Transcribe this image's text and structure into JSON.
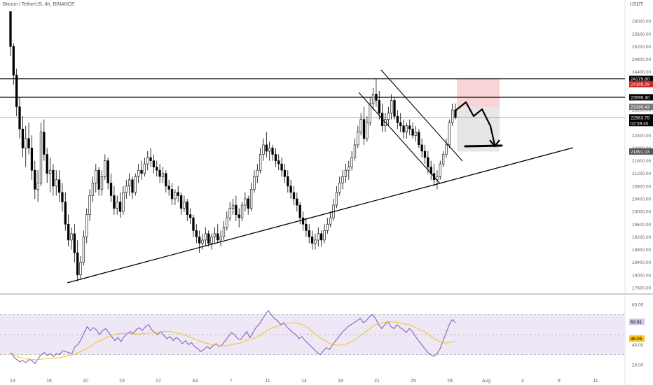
{
  "header": {
    "symbol": "Bitcoin / TetherUS, 4h, BINANCE",
    "unit": "USDT"
  },
  "chart_data": {
    "type": "candlestick",
    "ylim": [
      17400,
      26400
    ],
    "y_ticks": [
      17600,
      18000,
      18400,
      18800,
      19200,
      19600,
      20000,
      20400,
      20800,
      21200,
      21600,
      22000,
      22400,
      22800,
      23200,
      23600,
      24000,
      24400,
      24800,
      25200,
      25600,
      26000
    ],
    "x_tick_labels": [
      "13",
      "16",
      "20",
      "23",
      "27",
      "Jul",
      "7",
      "11",
      "14",
      "18",
      "21",
      "25",
      "28",
      "Aug",
      "4",
      "8",
      "11"
    ],
    "price_labels": [
      {
        "text": "24179.80",
        "role": "resistance"
      },
      {
        "text": "24169.29",
        "role": "stop"
      },
      {
        "text": "23599.30",
        "role": "resistance"
      },
      {
        "text": "23296.43",
        "role": "entry"
      },
      {
        "text": "22963.75",
        "role": "last"
      },
      {
        "text": "02:59:40",
        "role": "countdown"
      },
      {
        "text": "21891.03",
        "role": "target"
      }
    ],
    "levels": [
      24179.8,
      23599.3,
      22963.75
    ],
    "trendline": {
      "from": [
        "16",
        17700
      ],
      "to": [
        "8",
        21800
      ]
    },
    "candles_ohlc": [
      [
        26300,
        26300,
        24900,
        25200
      ],
      [
        25200,
        25300,
        24000,
        24300
      ],
      [
        24300,
        24500,
        23000,
        23300
      ],
      [
        23300,
        23600,
        22300,
        22600
      ],
      [
        22600,
        23000,
        21700,
        22000
      ],
      [
        22000,
        22700,
        21400,
        22300
      ],
      [
        22300,
        22800,
        21800,
        22000
      ],
      [
        22000,
        22400,
        21000,
        21300
      ],
      [
        21300,
        21600,
        20400,
        20700
      ],
      [
        20700,
        21300,
        20300,
        20900
      ],
      [
        20900,
        22800,
        20800,
        22500
      ],
      [
        22500,
        22900,
        21600,
        21800
      ],
      [
        21800,
        22000,
        20900,
        21200
      ],
      [
        21200,
        21700,
        20600,
        21300
      ],
      [
        21300,
        21500,
        20500,
        20800
      ],
      [
        20800,
        21300,
        20500,
        21000
      ],
      [
        21000,
        21300,
        20300,
        20600
      ],
      [
        20600,
        20900,
        20000,
        20300
      ],
      [
        20300,
        20600,
        19400,
        19600
      ],
      [
        19600,
        19900,
        18900,
        19100
      ],
      [
        19100,
        19500,
        18800,
        19300
      ],
      [
        19300,
        19600,
        18400,
        18700
      ],
      [
        18700,
        19100,
        17800,
        18000
      ],
      [
        18000,
        18600,
        17850,
        18400
      ],
      [
        18400,
        19400,
        18300,
        19200
      ],
      [
        19200,
        20100,
        19000,
        19900
      ],
      [
        19900,
        20700,
        19700,
        20500
      ],
      [
        20500,
        21100,
        20300,
        20900
      ],
      [
        20900,
        21500,
        20600,
        21300
      ],
      [
        21300,
        21400,
        20500,
        20700
      ],
      [
        20700,
        21300,
        20500,
        21100
      ],
      [
        21100,
        21800,
        21000,
        21600
      ],
      [
        21600,
        21700,
        20700,
        20900
      ],
      [
        20900,
        21200,
        20300,
        20500
      ],
      [
        20500,
        20800,
        19900,
        20100
      ],
      [
        20100,
        20500,
        19900,
        20300
      ],
      [
        20300,
        20600,
        19800,
        20000
      ],
      [
        20000,
        20800,
        19900,
        20600
      ],
      [
        20600,
        21000,
        20400,
        20800
      ],
      [
        20800,
        21200,
        20500,
        21000
      ],
      [
        21000,
        21100,
        20400,
        20600
      ],
      [
        20600,
        21200,
        20500,
        21100
      ],
      [
        21100,
        21500,
        20900,
        21300
      ],
      [
        21300,
        21600,
        21000,
        21200
      ],
      [
        21200,
        21700,
        21100,
        21500
      ],
      [
        21500,
        21900,
        21300,
        21700
      ],
      [
        21700,
        22000,
        21400,
        21600
      ],
      [
        21600,
        21800,
        21200,
        21400
      ],
      [
        21400,
        21600,
        21100,
        21300
      ],
      [
        21300,
        21500,
        20900,
        21100
      ],
      [
        21100,
        21400,
        20900,
        21200
      ],
      [
        21200,
        21300,
        20600,
        20800
      ],
      [
        20800,
        21000,
        20500,
        20700
      ],
      [
        20700,
        20900,
        20200,
        20400
      ],
      [
        20400,
        20700,
        20200,
        20600
      ],
      [
        20600,
        20800,
        20300,
        20500
      ],
      [
        20500,
        20600,
        19900,
        20100
      ],
      [
        20100,
        20500,
        20000,
        20300
      ],
      [
        20300,
        20400,
        19700,
        19900
      ],
      [
        19900,
        20100,
        19600,
        19800
      ],
      [
        19800,
        19900,
        19200,
        19400
      ],
      [
        19400,
        19600,
        19000,
        19200
      ],
      [
        19200,
        19400,
        18700,
        19000
      ],
      [
        19000,
        19300,
        18800,
        19100
      ],
      [
        19100,
        19500,
        18900,
        19300
      ],
      [
        19300,
        19400,
        18900,
        19000
      ],
      [
        19000,
        19300,
        18800,
        19200
      ],
      [
        19200,
        19500,
        19000,
        19300
      ],
      [
        19300,
        19600,
        19000,
        19100
      ],
      [
        19100,
        19400,
        18900,
        19200
      ],
      [
        19200,
        19700,
        19100,
        19500
      ],
      [
        19500,
        20000,
        19400,
        19800
      ],
      [
        19800,
        20300,
        19700,
        20100
      ],
      [
        20100,
        20400,
        19900,
        20200
      ],
      [
        20200,
        20500,
        19700,
        19900
      ],
      [
        19900,
        20100,
        19500,
        19800
      ],
      [
        19800,
        20300,
        19700,
        20200
      ],
      [
        20200,
        20600,
        20000,
        20400
      ],
      [
        20400,
        20500,
        19900,
        20100
      ],
      [
        20100,
        20900,
        20000,
        20700
      ],
      [
        20700,
        21300,
        20600,
        21100
      ],
      [
        21100,
        21500,
        20900,
        21300
      ],
      [
        21300,
        22000,
        21200,
        21800
      ],
      [
        21800,
        22300,
        21600,
        22100
      ],
      [
        22100,
        22500,
        21700,
        21900
      ],
      [
        21900,
        22200,
        21600,
        22000
      ],
      [
        22000,
        22100,
        21600,
        21800
      ],
      [
        21800,
        22000,
        21400,
        21600
      ],
      [
        21600,
        21800,
        21300,
        21500
      ],
      [
        21500,
        21700,
        21100,
        21300
      ],
      [
        21300,
        21500,
        20900,
        21100
      ],
      [
        21100,
        21300,
        20600,
        20800
      ],
      [
        20800,
        21000,
        20400,
        20600
      ],
      [
        20600,
        20800,
        20200,
        20400
      ],
      [
        20400,
        20600,
        20000,
        20200
      ],
      [
        20200,
        20300,
        19600,
        19800
      ],
      [
        19800,
        20000,
        19400,
        19600
      ],
      [
        19600,
        19800,
        19200,
        19400
      ],
      [
        19400,
        19600,
        19000,
        19200
      ],
      [
        19200,
        19400,
        18800,
        19000
      ],
      [
        19000,
        19300,
        18800,
        19100
      ],
      [
        19100,
        19500,
        18900,
        19300
      ],
      [
        19300,
        19400,
        18900,
        19100
      ],
      [
        19100,
        19600,
        19000,
        19400
      ],
      [
        19400,
        19800,
        19300,
        19600
      ],
      [
        19600,
        20000,
        19500,
        19800
      ],
      [
        19800,
        20400,
        19700,
        20200
      ],
      [
        20200,
        20800,
        20100,
        20600
      ],
      [
        20600,
        21100,
        20500,
        20900
      ],
      [
        20900,
        21300,
        20700,
        21100
      ],
      [
        21100,
        21500,
        20900,
        21300
      ],
      [
        21300,
        21600,
        21000,
        21400
      ],
      [
        21400,
        21900,
        21300,
        21700
      ],
      [
        21700,
        22300,
        21600,
        22100
      ],
      [
        22100,
        22700,
        22000,
        22500
      ],
      [
        22500,
        23100,
        22400,
        22900
      ],
      [
        22900,
        23300,
        22100,
        22300
      ],
      [
        22300,
        23000,
        22200,
        22800
      ],
      [
        22800,
        23600,
        22700,
        23400
      ],
      [
        23400,
        23900,
        23200,
        23700
      ],
      [
        23700,
        24200,
        23300,
        23500
      ],
      [
        23500,
        23800,
        22900,
        23100
      ],
      [
        23100,
        23400,
        22500,
        22700
      ],
      [
        22700,
        23100,
        22500,
        22900
      ],
      [
        22900,
        23300,
        22700,
        23100
      ],
      [
        23100,
        23700,
        22900,
        23500
      ],
      [
        23500,
        23600,
        22900,
        23000
      ],
      [
        23000,
        23200,
        22600,
        22800
      ],
      [
        22800,
        23100,
        22500,
        22700
      ],
      [
        22700,
        22900,
        22300,
        22500
      ],
      [
        22500,
        22800,
        22300,
        22700
      ],
      [
        22700,
        22900,
        22400,
        22600
      ],
      [
        22600,
        22800,
        22300,
        22400
      ],
      [
        22400,
        22700,
        22200,
        22500
      ],
      [
        22500,
        22600,
        22000,
        22100
      ],
      [
        22100,
        22300,
        21700,
        21900
      ],
      [
        21900,
        22100,
        21500,
        21700
      ],
      [
        21700,
        21900,
        21200,
        21400
      ],
      [
        21400,
        21600,
        21000,
        21200
      ],
      [
        21200,
        21500,
        20800,
        21000
      ],
      [
        21000,
        21300,
        20700,
        21100
      ],
      [
        21100,
        21600,
        21000,
        21500
      ],
      [
        21500,
        21900,
        21400,
        21800
      ],
      [
        21800,
        22300,
        21700,
        22100
      ],
      [
        22100,
        22900,
        22000,
        22800
      ],
      [
        22800,
        23400,
        22700,
        23200
      ],
      [
        23200,
        23400,
        22900,
        22960
      ]
    ],
    "rsi": {
      "ylim": [
        15,
        85
      ],
      "y_ticks": [
        20,
        40,
        80
      ],
      "bands": [
        30,
        70
      ],
      "labels": [
        {
          "text": "62.81",
          "role": "rsi"
        },
        {
          "text": "46.05",
          "role": "rsi_ma"
        }
      ],
      "values": [
        32,
        28,
        25,
        23,
        24,
        22,
        25,
        24,
        21,
        26,
        30,
        32,
        29,
        31,
        28,
        31,
        30,
        34,
        33,
        32,
        31,
        38,
        40,
        45,
        52,
        58,
        54,
        57,
        55,
        50,
        54,
        56,
        52,
        48,
        44,
        47,
        43,
        48,
        51,
        53,
        51,
        55,
        57,
        54,
        58,
        60,
        55,
        52,
        50,
        53,
        49,
        46,
        48,
        44,
        47,
        45,
        41,
        44,
        40,
        42,
        38,
        36,
        33,
        35,
        38,
        36,
        39,
        41,
        38,
        40,
        44,
        48,
        52,
        50,
        46,
        45,
        49,
        53,
        47,
        52,
        57,
        60,
        65,
        70,
        74,
        70,
        66,
        64,
        60,
        62,
        58,
        55,
        52,
        50,
        46,
        48,
        44,
        41,
        38,
        35,
        32,
        30,
        34,
        37,
        35,
        40,
        44,
        48,
        52,
        55,
        58,
        60,
        62,
        64,
        66,
        62,
        64,
        68,
        70,
        66,
        60,
        56,
        60,
        63,
        58,
        56,
        60,
        57,
        55,
        52,
        56,
        53,
        48,
        44,
        40,
        36,
        32,
        30,
        28,
        31,
        36,
        44,
        52,
        60,
        65,
        62
      ]
    }
  },
  "colors": {
    "up": "#ffffff",
    "down": "#000000",
    "rsi": "#7e57c2",
    "rsi_ma": "#f5c518",
    "band": "#ede7f6",
    "stop_zone": "#f8c8cc",
    "target_zone": "#dcdcdc",
    "label_dark": "#000000",
    "label_red": "#c62828",
    "label_grey": "#787878"
  }
}
